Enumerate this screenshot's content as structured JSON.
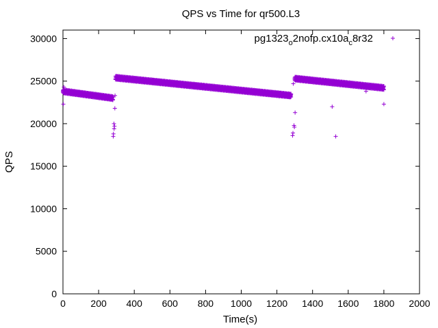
{
  "chart_data": {
    "type": "scatter",
    "title": "QPS vs Time for qr500.L3",
    "xlabel": "Time(s)",
    "ylabel": "QPS",
    "xlim": [
      0,
      2000
    ],
    "ylim": [
      0,
      31000
    ],
    "xticks": [
      "0",
      "200",
      "400",
      "600",
      "800",
      "1000",
      "1200",
      "1400",
      "1600",
      "1800",
      "2000"
    ],
    "yticks": [
      "0",
      "5000",
      "10000",
      "15000",
      "20000",
      "25000",
      "30000"
    ],
    "grid": false,
    "legend_position": "top-right",
    "marker": "+",
    "series": [
      {
        "name": "pg1323_o2nofp.cx10a_c8r32",
        "legend_parts": [
          "pg1323",
          "o",
          "2nofp.cx10a",
          "c",
          "8r32"
        ],
        "color": "#9400d3",
        "segments": [
          {
            "x_start": 0,
            "x_end": 280,
            "y_start": 23800,
            "y_end": 23000
          },
          {
            "x_start": 295,
            "x_end": 1280,
            "y_start": 25400,
            "y_end": 23300
          },
          {
            "x_start": 1300,
            "x_end": 1800,
            "y_start": 25300,
            "y_end": 24200
          }
        ],
        "outliers": [
          {
            "x": 2,
            "y": 22300
          },
          {
            "x": 5,
            "y": 24300
          },
          {
            "x": 282,
            "y": 18500
          },
          {
            "x": 283,
            "y": 18800
          },
          {
            "x": 286,
            "y": 20000
          },
          {
            "x": 287,
            "y": 19400
          },
          {
            "x": 289,
            "y": 19700
          },
          {
            "x": 291,
            "y": 21800
          },
          {
            "x": 292,
            "y": 23300
          },
          {
            "x": 1288,
            "y": 18600
          },
          {
            "x": 1290,
            "y": 18900
          },
          {
            "x": 1292,
            "y": 24700
          },
          {
            "x": 1296,
            "y": 19800
          },
          {
            "x": 1298,
            "y": 19600
          },
          {
            "x": 1302,
            "y": 21300
          },
          {
            "x": 1510,
            "y": 22000
          },
          {
            "x": 1530,
            "y": 18500
          },
          {
            "x": 1700,
            "y": 23800
          },
          {
            "x": 1800,
            "y": 22300
          }
        ]
      }
    ]
  }
}
